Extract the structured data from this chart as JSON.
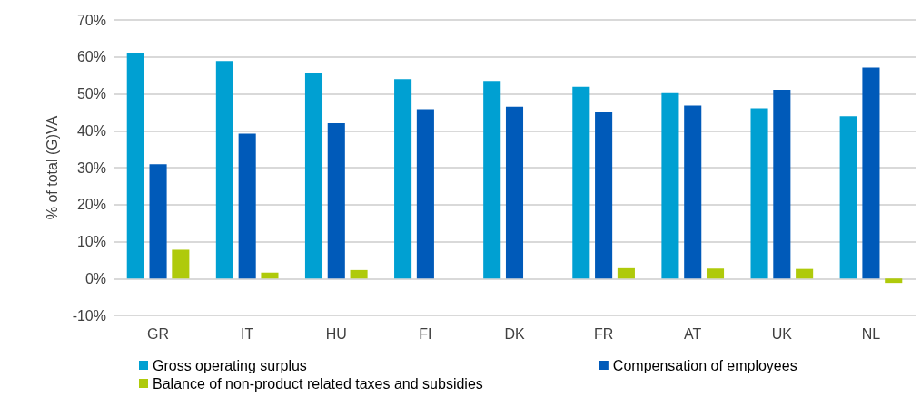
{
  "chart_data": {
    "type": "bar",
    "ylabel": "% of total (G)VA",
    "categories": [
      "GR",
      "IT",
      "HU",
      "FI",
      "DK",
      "FR",
      "AT",
      "UK",
      "NL"
    ],
    "series": [
      {
        "name": "Gross operating surplus",
        "color": "#00a0d2",
        "values": [
          61.0,
          58.9,
          55.5,
          54.0,
          53.5,
          51.9,
          50.2,
          46.1,
          43.9
        ]
      },
      {
        "name": "Compensation of employees",
        "color": "#005ab9",
        "values": [
          30.9,
          39.2,
          42.0,
          45.8,
          46.5,
          45.0,
          46.8,
          51.1,
          57.1
        ]
      },
      {
        "name": "Balance of non-product related taxes and subsidies",
        "color": "#afca0b",
        "values": [
          7.8,
          1.6,
          2.3,
          null,
          null,
          2.8,
          2.7,
          2.6,
          -1.2
        ]
      }
    ],
    "ylim": [
      -10,
      70
    ],
    "yticks": [
      {
        "value": -10,
        "label": "-10%"
      },
      {
        "value": 0,
        "label": "0%"
      },
      {
        "value": 10,
        "label": "10%"
      },
      {
        "value": 20,
        "label": "20%"
      },
      {
        "value": 30,
        "label": "30%"
      },
      {
        "value": 40,
        "label": "40%"
      },
      {
        "value": 50,
        "label": "50%"
      },
      {
        "value": 60,
        "label": "60%"
      },
      {
        "value": 70,
        "label": "70%"
      }
    ],
    "grid": "y",
    "legend": "bottom"
  }
}
